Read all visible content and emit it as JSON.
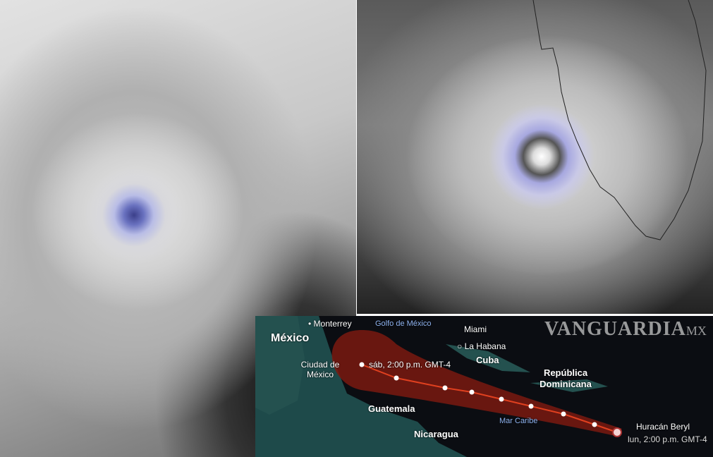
{
  "images": {
    "left": "hurricane-satellite-view",
    "right": "hurricane-satellite-view-florida"
  },
  "map": {
    "labels": {
      "monterrey": "Monterrey",
      "golfo": "Golfo de México",
      "miami": "Miami",
      "mexico": "México",
      "la_habana": "La Habana",
      "ciudad_de_mexico": "Ciudad de México",
      "cuba": "Cuba",
      "republica_dominicana": "República Dominicana",
      "guatemala": "Guatemala",
      "mar_caribe": "Mar Caribe",
      "nicaragua": "Nicaragua"
    },
    "forecast_label": "sáb, 2:00 p.m. GMT-4",
    "storm_name": "Huracán Beryl",
    "storm_time": "lun, 2:00 p.m. GMT-4",
    "track_color": "#e0401f",
    "cone_color": "#7a1a10"
  },
  "watermark": {
    "brand": "VANGUARDIA",
    "suffix": "MX"
  }
}
